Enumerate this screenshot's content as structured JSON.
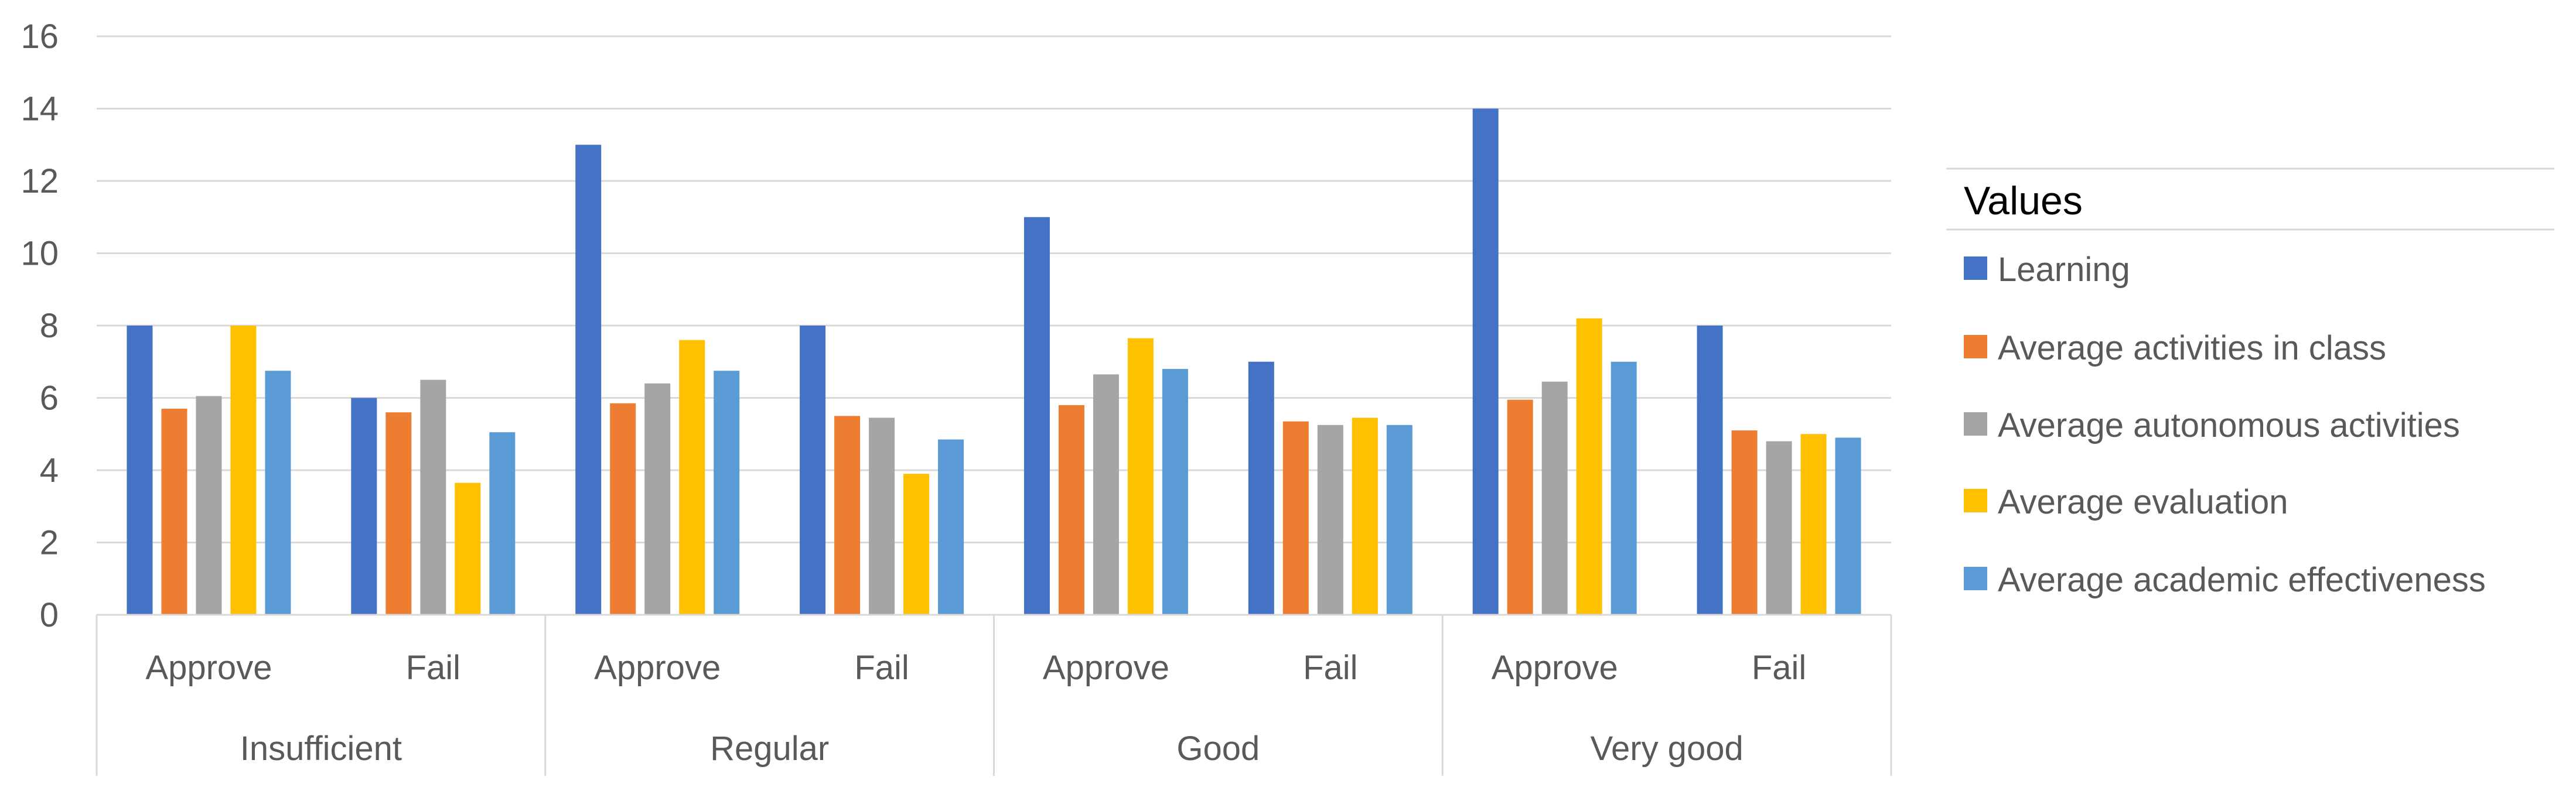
{
  "chart_data": {
    "type": "bar",
    "title": "",
    "xlabel": "",
    "ylabel": "",
    "ylim": [
      0,
      16
    ],
    "yticks": [
      0,
      2,
      4,
      6,
      8,
      10,
      12,
      14,
      16
    ],
    "grid": true,
    "legend_title": "Values",
    "legend_position": "right",
    "groups": [
      {
        "label": "Insufficient",
        "categories": [
          "Approve",
          "Fail"
        ]
      },
      {
        "label": "Regular",
        "categories": [
          "Approve",
          "Fail"
        ]
      },
      {
        "label": "Good",
        "categories": [
          "Approve",
          "Fail"
        ]
      },
      {
        "label": "Very good",
        "categories": [
          "Approve",
          "Fail"
        ]
      }
    ],
    "series": [
      {
        "name": "Learning",
        "color": "#4472C4",
        "values": [
          8,
          6,
          13,
          8,
          11,
          7,
          14,
          8
        ]
      },
      {
        "name": "Average activities in class",
        "color": "#ED7D31",
        "values": [
          5.7,
          5.6,
          5.85,
          5.5,
          5.8,
          5.35,
          5.95,
          5.1
        ]
      },
      {
        "name": "Average autonomous activities",
        "color": "#A5A5A5",
        "values": [
          6.05,
          6.5,
          6.4,
          5.45,
          6.65,
          5.25,
          6.45,
          4.8
        ]
      },
      {
        "name": "Average evaluation",
        "color": "#FFC000",
        "values": [
          8.0,
          3.65,
          7.6,
          3.9,
          7.65,
          5.45,
          8.2,
          5.0
        ]
      },
      {
        "name": "Average academic effectiveness",
        "color": "#5B9BD5",
        "values": [
          6.75,
          5.05,
          6.75,
          4.85,
          6.8,
          5.25,
          7.0,
          4.9
        ]
      }
    ]
  }
}
